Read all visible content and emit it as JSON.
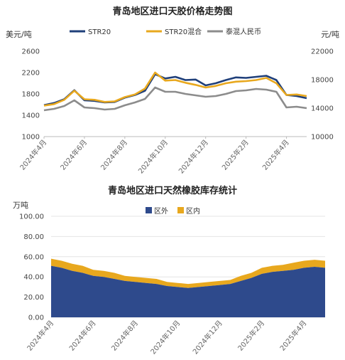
{
  "chart_data": [
    {
      "type": "line",
      "title": "青岛地区进口天胶价格走势图",
      "y_left_unit": "美元/吨",
      "y_right_unit": "元/吨",
      "y_left_lim": [
        1000,
        2600
      ],
      "y_left_ticks": [
        "1000",
        "1400",
        "1800",
        "2200",
        "2600"
      ],
      "y_right_lim": [
        10000,
        22000
      ],
      "y_right_ticks": [
        "10000",
        "14000",
        "18000",
        "22000"
      ],
      "x_ticks": [
        "2024年4月",
        "2024年6月",
        "2024年8月",
        "2024年10月",
        "2024年12月",
        "2025年2月",
        "2025年4月"
      ],
      "x_tick_positions": [
        0,
        2,
        4,
        6,
        8,
        10,
        12
      ],
      "legend_position": "top",
      "series": [
        {
          "name": "STR20",
          "axis": "left",
          "color": "#1f3f7a",
          "x": [
            0,
            0.5,
            1,
            1.5,
            2,
            2.5,
            3,
            3.5,
            4,
            4.5,
            5,
            5.5,
            6,
            6.5,
            7,
            7.5,
            8,
            8.5,
            9,
            9.5,
            10,
            10.5,
            11,
            11.5,
            12,
            12.5,
            13
          ],
          "values": [
            1590,
            1630,
            1700,
            1870,
            1680,
            1670,
            1640,
            1650,
            1730,
            1780,
            1860,
            2170,
            2090,
            2120,
            2060,
            2070,
            1960,
            2000,
            2060,
            2110,
            2100,
            2120,
            2140,
            2060,
            1780,
            1760,
            1720
          ]
        },
        {
          "name": "STR20混合",
          "axis": "left",
          "color": "#e8a81e",
          "x": [
            0,
            0.5,
            1,
            1.5,
            2,
            2.5,
            3,
            3.5,
            4,
            4.5,
            5,
            5.5,
            6,
            6.5,
            7,
            7.5,
            8,
            8.5,
            9,
            9.5,
            10,
            10.5,
            11,
            11.5,
            12,
            12.5,
            13
          ],
          "values": [
            1580,
            1610,
            1690,
            1860,
            1700,
            1690,
            1650,
            1660,
            1740,
            1790,
            1900,
            2200,
            2050,
            2060,
            2010,
            1970,
            1920,
            1950,
            2000,
            2030,
            2040,
            2060,
            2100,
            2000,
            1780,
            1790,
            1760
          ]
        },
        {
          "name": "泰混人民币",
          "axis": "right",
          "color": "#8c8c8c",
          "x": [
            0,
            0.5,
            1,
            1.5,
            2,
            2.5,
            3,
            3.5,
            4,
            4.5,
            5,
            5.5,
            6,
            6.5,
            7,
            7.5,
            8,
            8.5,
            9,
            9.5,
            10,
            10.5,
            11,
            11.5,
            12,
            12.5,
            13
          ],
          "values": [
            13700,
            13900,
            14300,
            15100,
            14100,
            14000,
            13800,
            13900,
            14400,
            14800,
            15300,
            16900,
            16300,
            16300,
            16000,
            15800,
            15600,
            15700,
            16000,
            16400,
            16500,
            16700,
            16600,
            16300,
            14100,
            14200,
            14000
          ]
        }
      ]
    },
    {
      "type": "area",
      "title": "青岛地区进口天然橡胶库存统计",
      "y_unit": "万吨",
      "ylim": [
        0,
        100
      ],
      "y_ticks": [
        "0.00",
        "20.00",
        "40.00",
        "60.00",
        "80.00",
        "100.00"
      ],
      "x_ticks": [
        "2024年4月",
        "2024年6月",
        "2024年8月",
        "2024年10月",
        "2024年12月",
        "2025年2月",
        "2025年4月"
      ],
      "x_tick_positions": [
        0,
        2,
        4,
        6,
        8,
        10,
        12
      ],
      "legend_position": "top",
      "stacked": true,
      "x": [
        0,
        0.5,
        1,
        1.5,
        2,
        2.5,
        3,
        3.5,
        4,
        4.5,
        5,
        5.5,
        6,
        6.5,
        7,
        7.5,
        8,
        8.5,
        9,
        9.5,
        10,
        10.5,
        11,
        11.5,
        12,
        12.5,
        13
      ],
      "series": [
        {
          "name": "区外",
          "color": "#2e4a8c",
          "values": [
            51,
            49,
            46,
            44,
            41,
            40,
            38,
            36,
            35,
            34,
            33,
            31,
            30,
            29,
            30,
            31,
            32,
            33,
            36,
            39,
            43,
            45,
            46,
            47,
            49,
            50,
            49
          ]
        },
        {
          "name": "区内",
          "color": "#e8a81e",
          "values": [
            7,
            7,
            7,
            7,
            6,
            6,
            6,
            5,
            5,
            5,
            5,
            4,
            4,
            4,
            4,
            4,
            4,
            4,
            5,
            5,
            6,
            6,
            6,
            7,
            7,
            7,
            7
          ]
        }
      ]
    }
  ]
}
